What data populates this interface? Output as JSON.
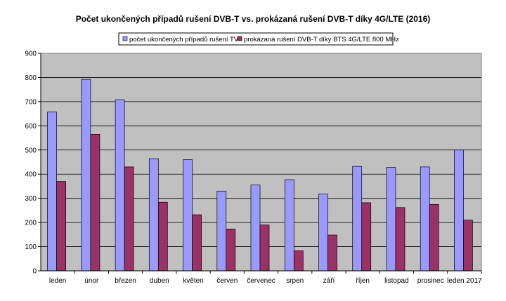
{
  "chart_data": {
    "type": "bar",
    "title": "Počet ukončených případů rušení DVB-T vs. prokázaná rušení DVB-T díky 4G/LTE (2016)",
    "xlabel": "",
    "ylabel": "",
    "categories": [
      "leden",
      "únor",
      "březen",
      "duben",
      "květen",
      "červen",
      "červenec",
      "srpen",
      "září",
      "říjen",
      "listopad",
      "prosinec",
      "leden 2017"
    ],
    "series": [
      {
        "name": "počet ukončených případů rušení TV",
        "color": "#9999ff",
        "values": [
          657,
          792,
          708,
          464,
          460,
          330,
          355,
          377,
          318,
          432,
          428,
          430,
          500
        ]
      },
      {
        "name": "prokázaná rušení DVB-T díky BTS 4G/LTE 800 MHz",
        "color": "#993366",
        "values": [
          370,
          565,
          430,
          284,
          232,
          173,
          190,
          83,
          148,
          282,
          262,
          275,
          210
        ]
      }
    ],
    "ylim": [
      0,
      900
    ],
    "yticks": [
      0,
      100,
      200,
      300,
      400,
      500,
      600,
      700,
      800,
      900
    ],
    "plot_background": "#c0c0c0",
    "grid": true,
    "legend_position": "top-center"
  }
}
